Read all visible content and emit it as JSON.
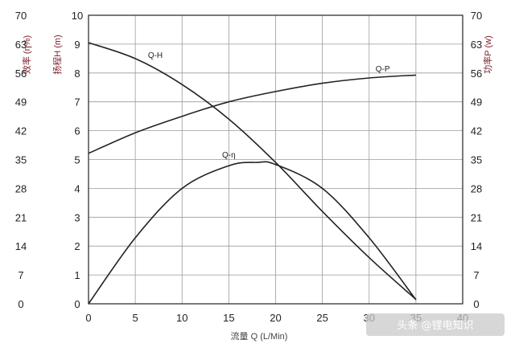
{
  "chart_data": {
    "type": "line",
    "xlabel": "流量 Q (L/Min)",
    "ylabel_left_outer": "效率 (η%)",
    "ylabel_left_inner": "扬程H (m)",
    "ylabel_right": "功率P (w)",
    "xlim": [
      0,
      40
    ],
    "ylim_head": [
      0,
      10
    ],
    "ylim_eff": [
      0,
      70
    ],
    "ylim_power": [
      0,
      70
    ],
    "x_ticks": [
      "0",
      "5",
      "10",
      "15",
      "20",
      "25",
      "30",
      "35",
      "40"
    ],
    "head_ticks": [
      "0",
      "1",
      "2",
      "3",
      "4",
      "5",
      "6",
      "7",
      "8",
      "9",
      "10"
    ],
    "eff_ticks": [
      "0",
      "7",
      "14",
      "21",
      "28",
      "35",
      "42",
      "49",
      "56",
      "63",
      "70"
    ],
    "power_ticks": [
      "0",
      "7",
      "14",
      "21",
      "28",
      "35",
      "42",
      "49",
      "56",
      "63",
      "70"
    ],
    "grid": true,
    "series": [
      {
        "name": "Q-H",
        "axis": "head",
        "x": [
          0,
          5,
          10,
          15,
          20,
          25,
          30,
          35
        ],
        "y": [
          9.05,
          8.5,
          7.6,
          6.4,
          4.9,
          3.2,
          1.6,
          0.15
        ]
      },
      {
        "name": "Q-P",
        "axis": "power",
        "x": [
          0,
          5,
          10,
          15,
          20,
          25,
          30,
          35
        ],
        "y": [
          36.5,
          41.5,
          45.5,
          49,
          51.5,
          53.5,
          54.8,
          55.5
        ]
      },
      {
        "name": "Q-η",
        "axis": "eff",
        "x": [
          0,
          5,
          10,
          15,
          18,
          20,
          25,
          30,
          35
        ],
        "y": [
          0,
          16,
          28,
          33.5,
          34.3,
          33.8,
          28,
          16,
          1
        ]
      }
    ]
  },
  "watermark": {
    "text": "头条 @锂电知识"
  }
}
